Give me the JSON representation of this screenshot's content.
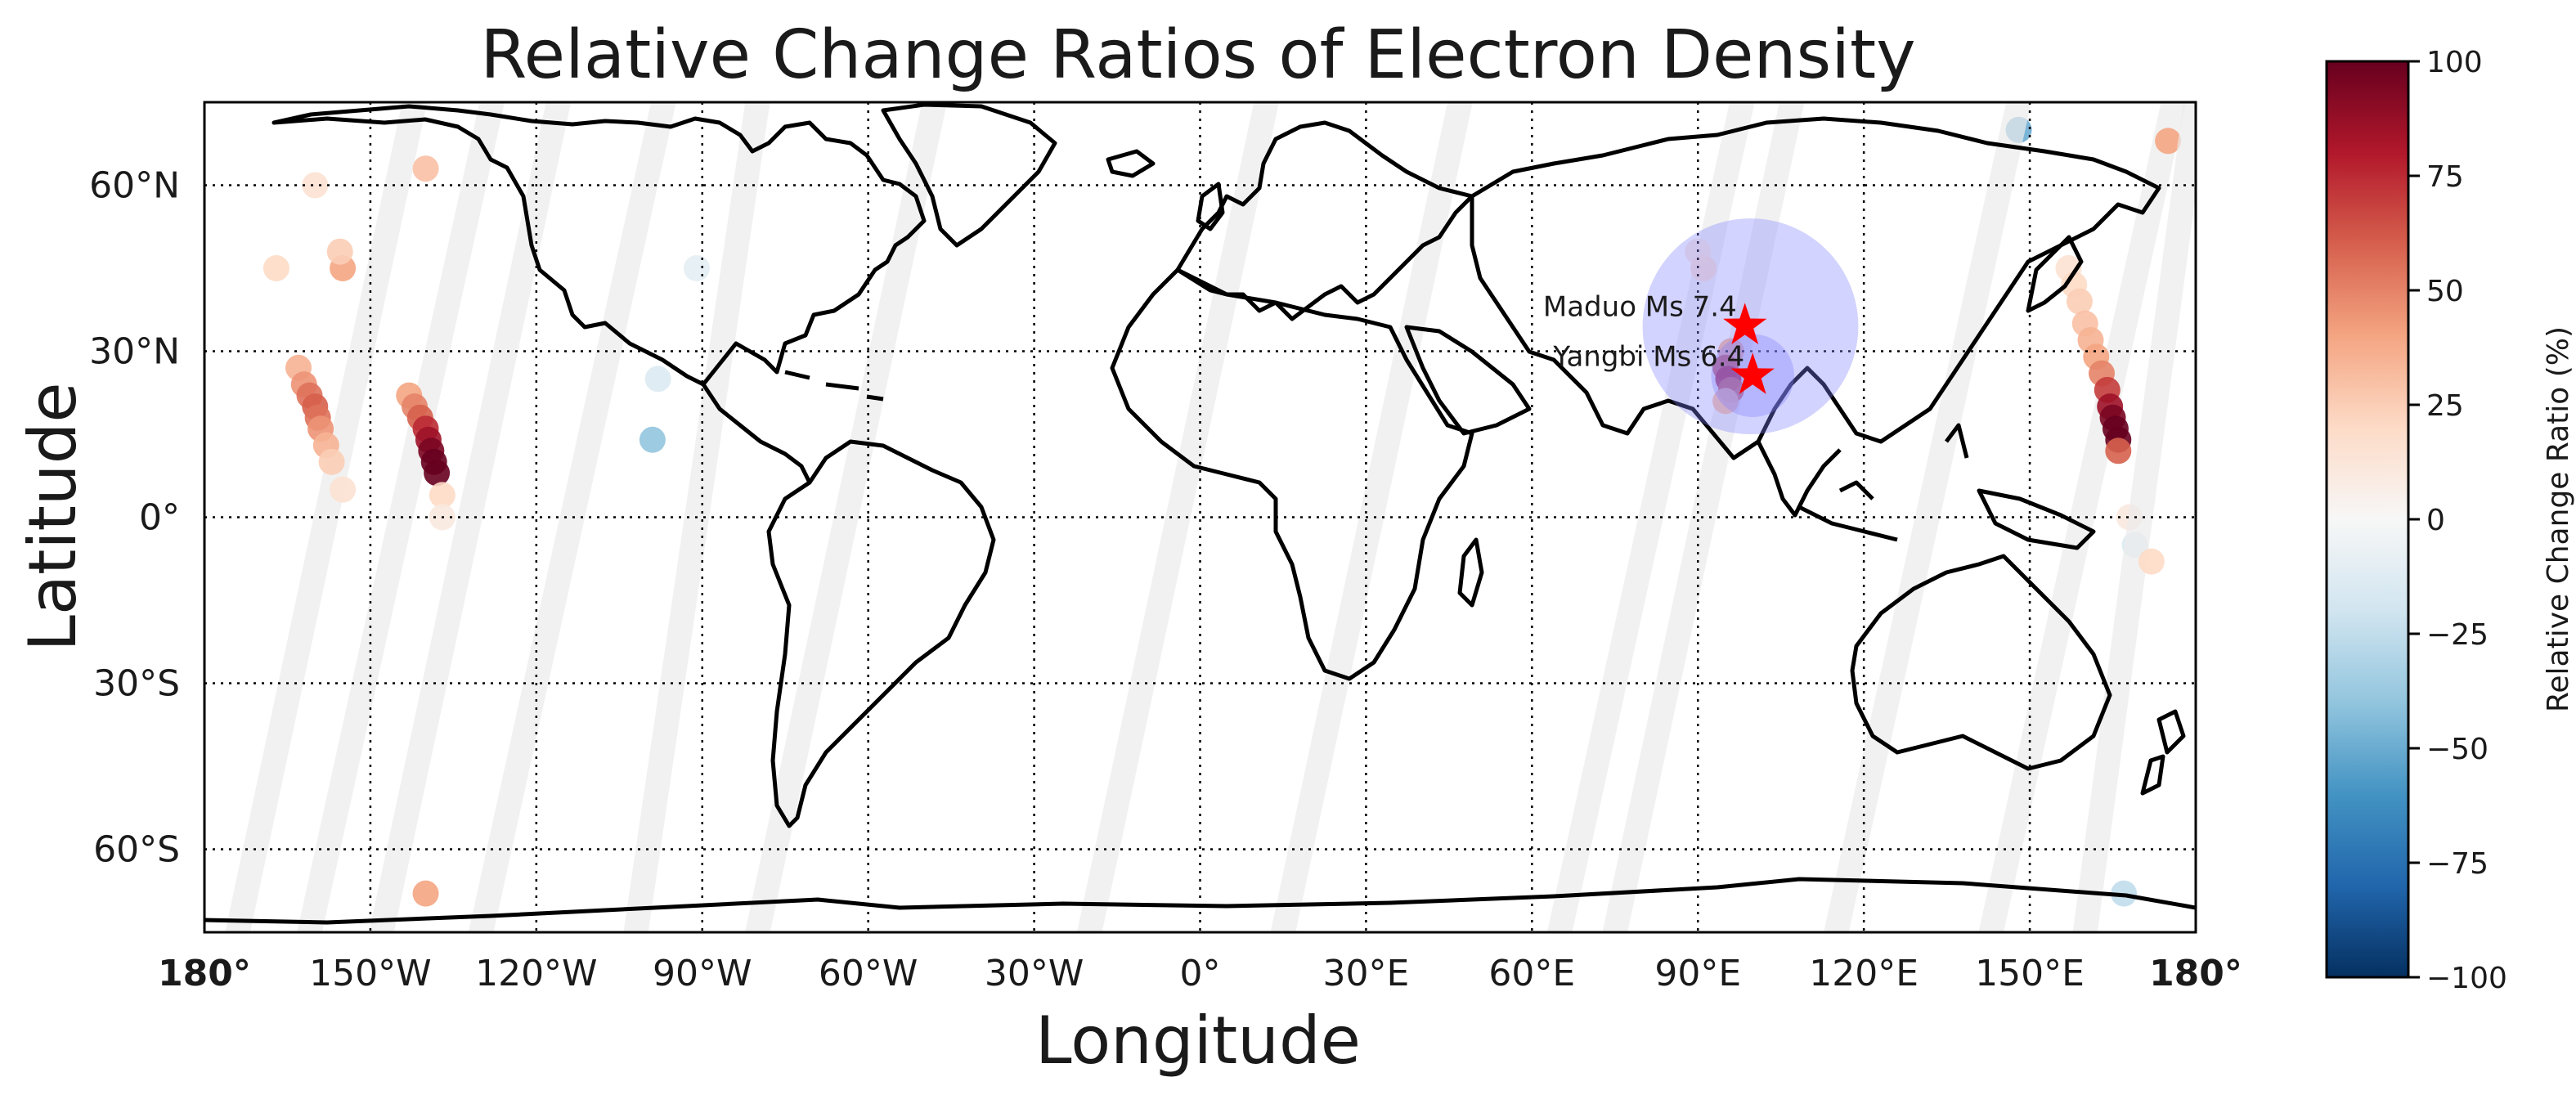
{
  "chart_data": {
    "type": "scatter",
    "title": "Relative Change Ratios of Electron Density",
    "xlabel": "Longitude",
    "ylabel": "Latitude",
    "xlim": [
      -180,
      180
    ],
    "ylim": [
      -75,
      75
    ],
    "grid": true,
    "x_ticks": [
      {
        "value": -180,
        "label": "180°"
      },
      {
        "value": -150,
        "label": "150°W"
      },
      {
        "value": -120,
        "label": "120°W"
      },
      {
        "value": -90,
        "label": "90°W"
      },
      {
        "value": -60,
        "label": "60°W"
      },
      {
        "value": -30,
        "label": "30°W"
      },
      {
        "value": 0,
        "label": "0°"
      },
      {
        "value": 30,
        "label": "30°E"
      },
      {
        "value": 60,
        "label": "60°E"
      },
      {
        "value": 90,
        "label": "90°E"
      },
      {
        "value": 120,
        "label": "120°E"
      },
      {
        "value": 150,
        "label": "150°E"
      },
      {
        "value": 180,
        "label": "180°"
      }
    ],
    "y_ticks": [
      {
        "value": 60,
        "label": "60°N"
      },
      {
        "value": 30,
        "label": "30°N"
      },
      {
        "value": 0,
        "label": "0°"
      },
      {
        "value": -30,
        "label": "30°S"
      },
      {
        "value": -60,
        "label": "60°S"
      }
    ],
    "colorbar": {
      "label": "Relative Change Ratio (%)",
      "range": [
        -100,
        100
      ],
      "ticks": [
        {
          "value": 100,
          "label": "100"
        },
        {
          "value": 75,
          "label": "75"
        },
        {
          "value": 50,
          "label": "50"
        },
        {
          "value": 25,
          "label": "25"
        },
        {
          "value": 0,
          "label": "0"
        },
        {
          "value": -25,
          "label": "−25"
        },
        {
          "value": -50,
          "label": "−50"
        },
        {
          "value": -75,
          "label": "−75"
        },
        {
          "value": -100,
          "label": "−100"
        }
      ],
      "colormap": "RdBu_r",
      "colors": [
        "#053061",
        "#2166ac",
        "#4393c3",
        "#92c5de",
        "#d1e5f0",
        "#f7f7f7",
        "#fddbc7",
        "#f4a582",
        "#d6604d",
        "#b2182b",
        "#67001f"
      ]
    },
    "epicenters": [
      {
        "label": "Maduo Ms 7.4",
        "lon": 98.5,
        "lat": 34.6,
        "color": "#ff0000"
      },
      {
        "label": "Yangbi Ms 6.4",
        "lon": 99.9,
        "lat": 25.6,
        "color": "#ff0000"
      }
    ],
    "preparation_zones": [
      {
        "lon": 99.5,
        "lat": 34.5,
        "radius_deg": 19.5,
        "color": "#8080ff"
      },
      {
        "lon": 99.9,
        "lat": 25.6,
        "radius_deg": 7.5,
        "color": "#8080ff"
      }
    ],
    "orbit_tracks": [
      {
        "x_bottom": -174,
        "x_top": -142,
        "points": [
          {
            "lon": -163,
            "lat": 27,
            "value": 35
          },
          {
            "lon": -162,
            "lat": 24,
            "value": 45
          },
          {
            "lon": -161,
            "lat": 22,
            "value": 55
          },
          {
            "lon": -160,
            "lat": 20,
            "value": 60
          },
          {
            "lon": -159.5,
            "lat": 18,
            "value": 55
          },
          {
            "lon": -159,
            "lat": 16,
            "value": 45
          },
          {
            "lon": -158,
            "lat": 13,
            "value": 35
          },
          {
            "lon": -157,
            "lat": 10,
            "value": 25
          },
          {
            "lon": -155,
            "lat": 5,
            "value": 15
          },
          {
            "lon": -167,
            "lat": 45,
            "value": 20
          }
        ]
      },
      {
        "x_bottom": -161,
        "x_top": -128,
        "points": [
          {
            "lon": -155,
            "lat": 45,
            "value": 40
          },
          {
            "lon": -155.5,
            "lat": 48,
            "value": 25
          },
          {
            "lon": -160,
            "lat": 60,
            "value": 15
          },
          {
            "lon": -140,
            "lat": -68,
            "value": 40
          }
        ]
      },
      {
        "x_bottom": -148,
        "x_top": -116,
        "points": [
          {
            "lon": -143,
            "lat": 22,
            "value": 40
          },
          {
            "lon": -142,
            "lat": 20,
            "value": 50
          },
          {
            "lon": -141,
            "lat": 18,
            "value": 60
          },
          {
            "lon": -140,
            "lat": 16,
            "value": 75
          },
          {
            "lon": -139.5,
            "lat": 14,
            "value": 85
          },
          {
            "lon": -139,
            "lat": 12,
            "value": 95
          },
          {
            "lon": -138.5,
            "lat": 10,
            "value": 100
          },
          {
            "lon": -138,
            "lat": 8,
            "value": 100
          },
          {
            "lon": -137,
            "lat": 4,
            "value": 20
          },
          {
            "lon": -137,
            "lat": 0,
            "value": 10
          },
          {
            "lon": -140,
            "lat": 63,
            "value": 30
          }
        ]
      },
      {
        "x_bottom": -102,
        "x_top": -80,
        "points": [
          {
            "lon": -99,
            "lat": 14,
            "value": -40
          },
          {
            "lon": -98,
            "lat": 25,
            "value": -15
          },
          {
            "lon": -91,
            "lat": 45,
            "value": -10
          }
        ]
      },
      {
        "x_bottom": 65,
        "x_top": 98,
        "points": [
          {
            "lon": 90,
            "lat": 48,
            "value": 10
          },
          {
            "lon": 91,
            "lat": 45,
            "value": 15
          }
        ]
      },
      {
        "x_bottom": 75,
        "x_top": 107,
        "points": [
          {
            "lon": 96,
            "lat": 30,
            "value": 35
          },
          {
            "lon": 95,
            "lat": 27,
            "value": 65
          },
          {
            "lon": 95.5,
            "lat": 25,
            "value": 80
          },
          {
            "lon": 96,
            "lat": 23,
            "value": 60
          },
          {
            "lon": 95,
            "lat": 21,
            "value": 30
          }
        ]
      },
      {
        "x_bottom": 143,
        "x_top": 176,
        "points": [
          {
            "lon": 148,
            "lat": 70,
            "value": -50
          },
          {
            "lon": 157,
            "lat": 45,
            "value": 15
          },
          {
            "lon": 158,
            "lat": 42,
            "value": 20
          },
          {
            "lon": 159,
            "lat": 39,
            "value": 25
          },
          {
            "lon": 160,
            "lat": 35,
            "value": 30
          },
          {
            "lon": 161,
            "lat": 32,
            "value": 35
          },
          {
            "lon": 162,
            "lat": 29,
            "value": 40
          },
          {
            "lon": 163,
            "lat": 26,
            "value": 50
          },
          {
            "lon": 164,
            "lat": 23,
            "value": 70
          },
          {
            "lon": 164.5,
            "lat": 20,
            "value": 85
          },
          {
            "lon": 165,
            "lat": 18,
            "value": 95
          },
          {
            "lon": 165.5,
            "lat": 16,
            "value": 100
          },
          {
            "lon": 166,
            "lat": 14,
            "value": 100
          },
          {
            "lon": 166,
            "lat": 12,
            "value": 60
          },
          {
            "lon": 169,
            "lat": -5,
            "value": -15
          },
          {
            "lon": 168,
            "lat": 0,
            "value": 10
          },
          {
            "lon": 175,
            "lat": 68,
            "value": 40
          }
        ]
      },
      {
        "x_bottom": 160,
        "x_top": 180,
        "points": [
          {
            "lon": 167,
            "lat": -68,
            "value": -25
          },
          {
            "lon": 172,
            "lat": -8,
            "value": 20
          }
        ]
      },
      {
        "x_bottom": -130,
        "x_top": -97,
        "points": []
      },
      {
        "x_bottom": -80,
        "x_top": -48,
        "points": []
      },
      {
        "x_bottom": -20,
        "x_top": 12,
        "points": []
      },
      {
        "x_bottom": 15,
        "x_top": 47,
        "points": []
      },
      {
        "x_bottom": 115,
        "x_top": 148,
        "points": []
      }
    ]
  }
}
